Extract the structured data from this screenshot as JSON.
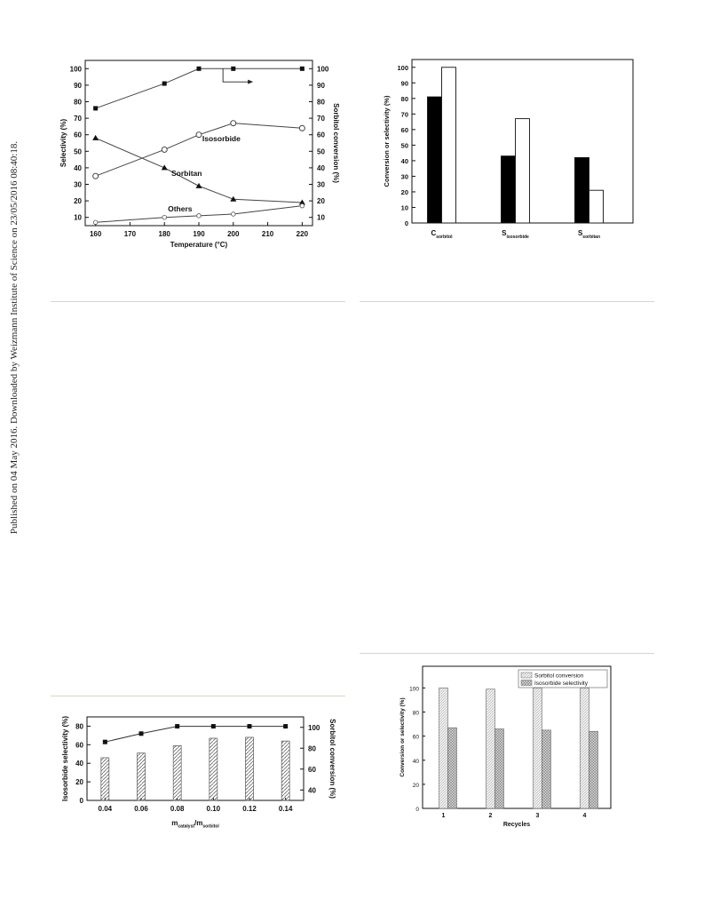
{
  "sidebar_note": "Published on 04 May 2016. Downloaded by Weizmann Institute of Science on 23/05/2016 08:40:18.",
  "chart_data": [
    {
      "id": "temperature-chart",
      "type": "line",
      "xlabel": "Temperature (°C)",
      "ylabel_left": "Selectivity (%)",
      "ylabel_right": "Sorbitol conversion (%)",
      "x_ticks": [
        160,
        170,
        180,
        190,
        200,
        210,
        220
      ],
      "y_ticks": [
        10,
        20,
        30,
        40,
        50,
        60,
        70,
        80,
        90,
        100
      ],
      "xlim": [
        157,
        223
      ],
      "ylim": [
        5,
        105
      ],
      "series": [
        {
          "name": "",
          "axis": "right",
          "marker": "square",
          "x": [
            160,
            180,
            190,
            200,
            220
          ],
          "y": [
            76,
            91,
            100,
            100,
            100
          ]
        },
        {
          "name": "Isosorbide",
          "axis": "left",
          "marker": "open-circle",
          "x": [
            160,
            180,
            190,
            200,
            220
          ],
          "y": [
            35,
            51,
            60,
            67,
            64
          ]
        },
        {
          "name": "Sorbitan",
          "axis": "left",
          "marker": "triangle",
          "x": [
            160,
            180,
            190,
            200,
            220
          ],
          "y": [
            58,
            40,
            29,
            21,
            19
          ]
        },
        {
          "name": "Others",
          "axis": "left",
          "marker": "open-circle-small",
          "x": [
            160,
            180,
            190,
            200,
            220
          ],
          "y": [
            7,
            10,
            11,
            12,
            17
          ]
        }
      ]
    },
    {
      "id": "conversion-selectivity-bars",
      "type": "bar",
      "ylabel": "Conversion or selectivity (%)",
      "categories": [
        {
          "main": "C",
          "sub": "sorbitol"
        },
        {
          "main": "S",
          "sub": "isosorbide"
        },
        {
          "main": "S",
          "sub": "sorbitan"
        }
      ],
      "y_ticks": [
        0,
        10,
        20,
        30,
        40,
        50,
        60,
        70,
        80,
        90,
        100
      ],
      "ylim": [
        0,
        105
      ],
      "series": [
        {
          "name": "",
          "fill": "#000000",
          "values": [
            81,
            43,
            42
          ]
        },
        {
          "name": "",
          "fill": "#ffffff",
          "values": [
            100,
            67,
            21
          ]
        }
      ]
    },
    {
      "id": "catalyst-ratio-chart",
      "type": "bar",
      "xlabel_main": "m",
      "xlabel_sub1": "catalyst",
      "xlabel_mid": "/m",
      "xlabel_sub2": "sorbitol",
      "ylabel_left": "Isosorbide selectivity (%)",
      "ylabel_right": "Sorbitol conversion (%)",
      "categories": [
        "0.04",
        "0.06",
        "0.08",
        "0.10",
        "0.12",
        "0.14"
      ],
      "y_ticks_left": [
        0,
        20,
        40,
        60,
        80
      ],
      "y_ticks_right": [
        40,
        60,
        80,
        100
      ],
      "ylim_left": [
        0,
        90
      ],
      "ylim_right": [
        30,
        110
      ],
      "bars": {
        "name": "",
        "values": [
          46,
          51,
          59,
          67,
          68,
          64
        ]
      },
      "line": {
        "name": "",
        "values": [
          86,
          94,
          101,
          101,
          101,
          101
        ]
      }
    },
    {
      "id": "recycle-chart",
      "type": "bar",
      "xlabel": "Recycles",
      "ylabel": "Conversion or selectivity (%)",
      "categories": [
        "1",
        "2",
        "3",
        "4"
      ],
      "y_ticks": [
        0,
        20,
        40,
        60,
        80,
        100
      ],
      "ylim": [
        0,
        118
      ],
      "legend_position": "top-right",
      "series": [
        {
          "name": "Sorbitol conversion",
          "pattern": "light-hatch",
          "values": [
            100,
            99,
            100,
            100
          ]
        },
        {
          "name": "Isosorbide selectivity",
          "pattern": "cross-hatch",
          "values": [
            67,
            66,
            65,
            64
          ]
        }
      ]
    }
  ]
}
